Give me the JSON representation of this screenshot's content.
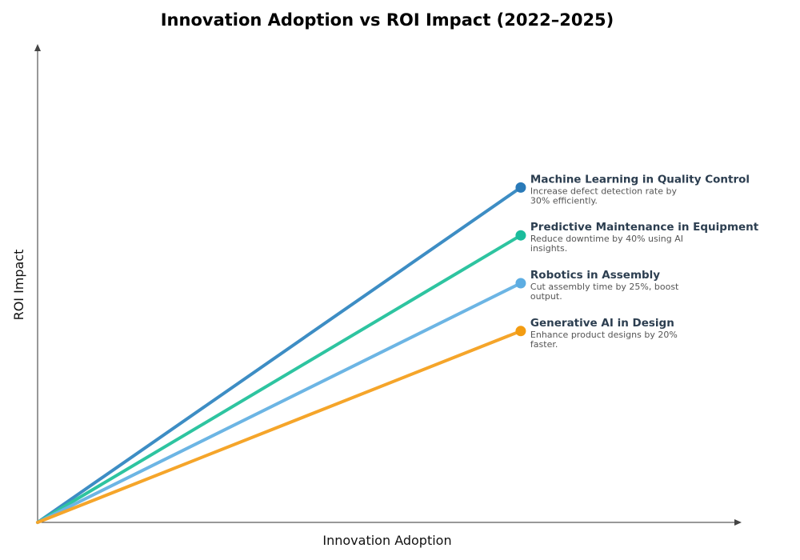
{
  "chart_data": {
    "type": "line",
    "title": "Innovation Adoption vs ROI Impact (2022–2025)",
    "xlabel": "Innovation Adoption",
    "ylabel": "ROI Impact",
    "xlim": [
      0,
      1.02
    ],
    "ylim": [
      0,
      1.0
    ],
    "grid": false,
    "ticks": false,
    "series": [
      {
        "name": "Machine Learning in Quality Control",
        "description": [
          "Increase defect detection rate by",
          "30% efficiently."
        ],
        "x": [
          0,
          0.7
        ],
        "y": [
          0,
          0.7
        ],
        "color": "#3d8dc4",
        "marker_color": "#2a7ab8"
      },
      {
        "name": "Predictive Maintenance in Equipment",
        "description": [
          "Reduce downtime by 40% using AI",
          "insights."
        ],
        "x": [
          0,
          0.7
        ],
        "y": [
          0,
          0.6
        ],
        "color": "#2ec4a0",
        "marker_color": "#1abc9c"
      },
      {
        "name": "Robotics in Assembly",
        "description": [
          "Cut assembly time by 25%, boost",
          "output."
        ],
        "x": [
          0,
          0.7
        ],
        "y": [
          0,
          0.5
        ],
        "color": "#6cb5e4",
        "marker_color": "#5dade2"
      },
      {
        "name": "Generative AI in Design",
        "description": [
          "Enhance product designs by 20%",
          "faster."
        ],
        "x": [
          0,
          0.7
        ],
        "y": [
          0,
          0.4
        ],
        "color": "#f5a52a",
        "marker_color": "#f39c12"
      }
    ]
  }
}
